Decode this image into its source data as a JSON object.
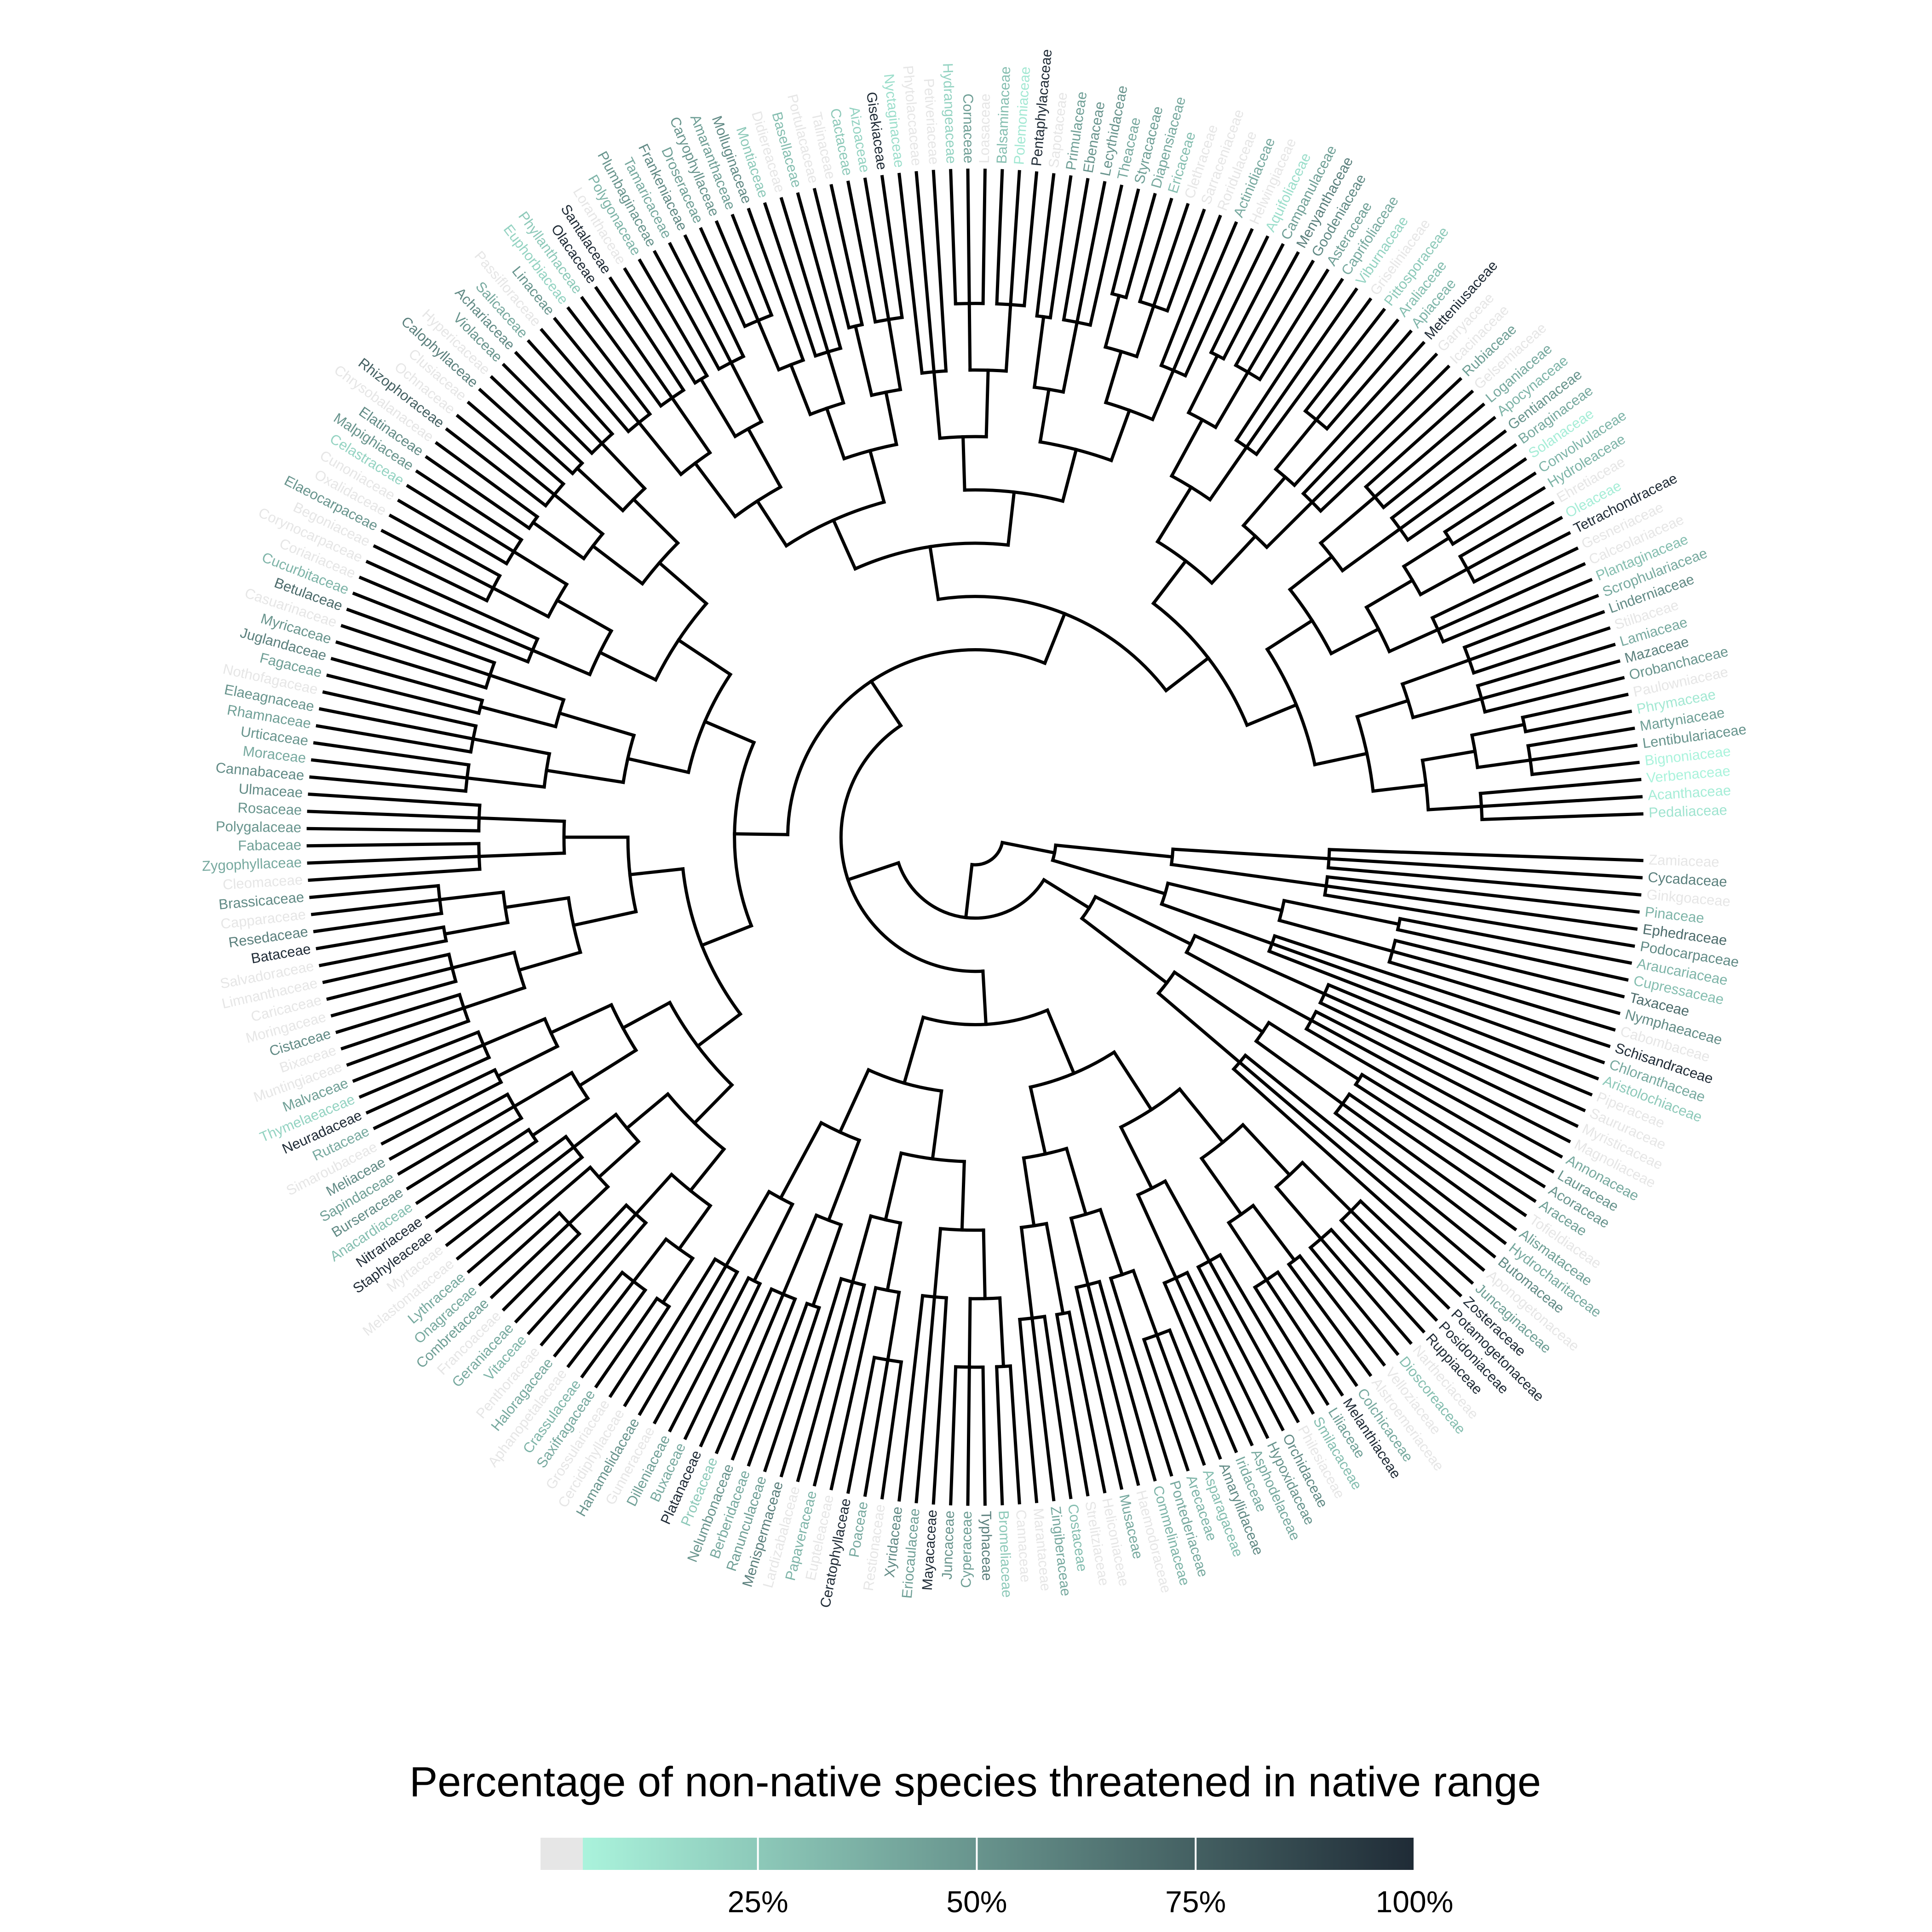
{
  "colors": {
    "na": "#e6e6e6",
    "low": "#aaf3dc",
    "high": "#1f2b36",
    "branch": "#000000"
  },
  "legend": {
    "title": "Percentage of non-native species threatened in native range",
    "ticks": [
      {
        "value": 25,
        "label": "25%"
      },
      {
        "value": 50,
        "label": "50%"
      },
      {
        "value": 75,
        "label": "75%"
      },
      {
        "value": 100,
        "label": "100%"
      }
    ]
  },
  "tips": [
    {
      "name": "Pedaliaceae",
      "p": 12
    },
    {
      "name": "Acanthaceae",
      "p": 8
    },
    {
      "name": "Verbenaceae",
      "p": 5
    },
    {
      "name": "Bignoniaceae",
      "p": 5
    },
    {
      "name": "Lentibulariaceae",
      "p": 50
    },
    {
      "name": "Martyniaceae",
      "p": 45
    },
    {
      "name": "Phrymaceae",
      "p": 10
    },
    {
      "name": "Paulowniaceae",
      "p": null
    },
    {
      "name": "Orobanchaceae",
      "p": 50
    },
    {
      "name": "Mazaceae",
      "p": 60
    },
    {
      "name": "Lamiaceae",
      "p": 40
    },
    {
      "name": "Stilbaceae",
      "p": null
    },
    {
      "name": "Linderniaceae",
      "p": 55
    },
    {
      "name": "Scrophulariaceae",
      "p": 40
    },
    {
      "name": "Plantaginaceae",
      "p": 30
    },
    {
      "name": "Calceolariaceae",
      "p": null
    },
    {
      "name": "Gesneriaceae",
      "p": null
    },
    {
      "name": "Tetrachondraceae",
      "p": 100
    },
    {
      "name": "Oleaceae",
      "p": 8
    },
    {
      "name": "Ehretiaceae",
      "p": null
    },
    {
      "name": "Hydroleaceae",
      "p": 35
    },
    {
      "name": "Convolvulaceae",
      "p": 35
    },
    {
      "name": "Solanaceae",
      "p": 8
    },
    {
      "name": "Boraginaceae",
      "p": 40
    },
    {
      "name": "Gentianaceae",
      "p": 50
    },
    {
      "name": "Apocynaceae",
      "p": 35
    },
    {
      "name": "Loganiaceae",
      "p": 40
    },
    {
      "name": "Gelsemiaceae",
      "p": null
    },
    {
      "name": "Rubiaceae",
      "p": 45
    },
    {
      "name": "Icacinaceae",
      "p": null
    },
    {
      "name": "Garryaceae",
      "p": null
    },
    {
      "name": "Metteniusaceae",
      "p": 100
    },
    {
      "name": "Apiaceae",
      "p": 35
    },
    {
      "name": "Araliaceae",
      "p": 30
    },
    {
      "name": "Pittosporaceae",
      "p": 25
    },
    {
      "name": "Griseliniaceae",
      "p": null
    },
    {
      "name": "Viburnaceae",
      "p": 20
    },
    {
      "name": "Caprifoliaceae",
      "p": 40
    },
    {
      "name": "Asteraceae",
      "p": 45
    },
    {
      "name": "Goodeniaceae",
      "p": 55
    },
    {
      "name": "Menyanthaceae",
      "p": 60
    },
    {
      "name": "Campanulaceae",
      "p": 45
    },
    {
      "name": "Aquifoliaceae",
      "p": 15
    },
    {
      "name": "Helwingiaceae",
      "p": null
    },
    {
      "name": "Actinidiaceae",
      "p": 40
    },
    {
      "name": "Roridulaceae",
      "p": null
    },
    {
      "name": "Sarraceniaceae",
      "p": null
    },
    {
      "name": "Clethraceae",
      "p": null
    },
    {
      "name": "Ericaceae",
      "p": 30
    },
    {
      "name": "Diapensiaceae",
      "p": 40
    },
    {
      "name": "Styracaceae",
      "p": 45
    },
    {
      "name": "Theaceae",
      "p": 40
    },
    {
      "name": "Lecythidaceae",
      "p": 50
    },
    {
      "name": "Ebenaceae",
      "p": 50
    },
    {
      "name": "Primulaceae",
      "p": 45
    },
    {
      "name": "Sapotaceae",
      "p": null
    },
    {
      "name": "Pentaphylacaceae",
      "p": 100
    },
    {
      "name": "Polemoniaceae",
      "p": 10
    },
    {
      "name": "Balsaminaceae",
      "p": 30
    },
    {
      "name": "Loasaceae",
      "p": null
    },
    {
      "name": "Cornaceae",
      "p": 45
    },
    {
      "name": "Hydrangeaceae",
      "p": 20
    },
    {
      "name": "Petiveriaceae",
      "p": null
    },
    {
      "name": "Phytolaccaceae",
      "p": null
    },
    {
      "name": "Nyctaginaceae",
      "p": 15
    },
    {
      "name": "Gisekiaceae",
      "p": 100
    },
    {
      "name": "Aizoaceae",
      "p": 20
    },
    {
      "name": "Cactaceae",
      "p": 25
    },
    {
      "name": "Talinaceae",
      "p": null
    },
    {
      "name": "Portulacaceae",
      "p": null
    },
    {
      "name": "Basellaceae",
      "p": 30
    },
    {
      "name": "Didiereaceae",
      "p": null
    },
    {
      "name": "Montiaceae",
      "p": 25
    },
    {
      "name": "Molluginaceae",
      "p": 55
    },
    {
      "name": "Amaranthaceae",
      "p": 45
    },
    {
      "name": "Caryophyllaceae",
      "p": 50
    },
    {
      "name": "Droseraceae",
      "p": 45
    },
    {
      "name": "Frankeniaceae",
      "p": 55
    },
    {
      "name": "Tamaricaceae",
      "p": 40
    },
    {
      "name": "Plumbaginaceae",
      "p": 50
    },
    {
      "name": "Polygonaceae",
      "p": 35
    },
    {
      "name": "Loranthaceae",
      "p": null
    },
    {
      "name": "Santalaceae",
      "p": 100
    },
    {
      "name": "Olacaceae",
      "p": 100
    },
    {
      "name": "Phyllanthaceae",
      "p": 25
    },
    {
      "name": "Euphorbiaceae",
      "p": 20
    },
    {
      "name": "Linaceae",
      "p": 50
    },
    {
      "name": "Passifloraceae",
      "p": null
    },
    {
      "name": "Salicaceae",
      "p": 40
    },
    {
      "name": "Achariaceae",
      "p": 55
    },
    {
      "name": "Violaceae",
      "p": 50
    },
    {
      "name": "Hypericaceae",
      "p": null
    },
    {
      "name": "Calophyllaceae",
      "p": 60
    },
    {
      "name": "Clusiaceae",
      "p": null
    },
    {
      "name": "Ochnaceae",
      "p": null
    },
    {
      "name": "Rhizophoraceae",
      "p": 75
    },
    {
      "name": "Chrysobalanaceae",
      "p": null
    },
    {
      "name": "Elatinaceae",
      "p": 55
    },
    {
      "name": "Malpighiaceae",
      "p": 50
    },
    {
      "name": "Celastraceae",
      "p": 20
    },
    {
      "name": "Cunoniaceae",
      "p": null
    },
    {
      "name": "Oxalidaceae",
      "p": null
    },
    {
      "name": "Elaeocarpaceae",
      "p": 50
    },
    {
      "name": "Begoniaceae",
      "p": null
    },
    {
      "name": "Corynocarpaceae",
      "p": null
    },
    {
      "name": "Coriariaceae",
      "p": null
    },
    {
      "name": "Cucurbitaceae",
      "p": 35
    },
    {
      "name": "Betulaceae",
      "p": 70
    },
    {
      "name": "Casuarinaceae",
      "p": null
    },
    {
      "name": "Myricaceae",
      "p": 50
    },
    {
      "name": "Juglandaceae",
      "p": 60
    },
    {
      "name": "Fagaceae",
      "p": 45
    },
    {
      "name": "Nothofagaceae",
      "p": null
    },
    {
      "name": "Elaeagnaceae",
      "p": 50
    },
    {
      "name": "Rhamnaceae",
      "p": 45
    },
    {
      "name": "Urticaceae",
      "p": 50
    },
    {
      "name": "Moraceae",
      "p": 40
    },
    {
      "name": "Cannabaceae",
      "p": 55
    },
    {
      "name": "Ulmaceae",
      "p": 55
    },
    {
      "name": "Rosaceae",
      "p": 50
    },
    {
      "name": "Polygalaceae",
      "p": 50
    },
    {
      "name": "Fabaceae",
      "p": 45
    },
    {
      "name": "Zygophyllaceae",
      "p": 40
    },
    {
      "name": "Cleomaceae",
      "p": null
    },
    {
      "name": "Brassicaceae",
      "p": 55
    },
    {
      "name": "Capparaceae",
      "p": null
    },
    {
      "name": "Resedaceae",
      "p": 60
    },
    {
      "name": "Bataceae",
      "p": 100
    },
    {
      "name": "Salvadoraceae",
      "p": null
    },
    {
      "name": "Limnanthaceae",
      "p": null
    },
    {
      "name": "Caricaceae",
      "p": null
    },
    {
      "name": "Moringaceae",
      "p": null
    },
    {
      "name": "Cistaceae",
      "p": 55
    },
    {
      "name": "Bixaceae",
      "p": null
    },
    {
      "name": "Muntingiaceae",
      "p": null
    },
    {
      "name": "Malvaceae",
      "p": 45
    },
    {
      "name": "Thymelaeaceae",
      "p": 20
    },
    {
      "name": "Neuradaceae",
      "p": 100
    },
    {
      "name": "Rutaceae",
      "p": 40
    },
    {
      "name": "Simaroubaceae",
      "p": null
    },
    {
      "name": "Meliaceae",
      "p": 55
    },
    {
      "name": "Sapindaceae",
      "p": 45
    },
    {
      "name": "Burseraceae",
      "p": 55
    },
    {
      "name": "Anacardiaceae",
      "p": 30
    },
    {
      "name": "Nitrariaceae",
      "p": 100
    },
    {
      "name": "Staphyleaceae",
      "p": 100
    },
    {
      "name": "Myrtaceae",
      "p": null
    },
    {
      "name": "Melastomataceae",
      "p": null
    },
    {
      "name": "Lythraceae",
      "p": 40
    },
    {
      "name": "Onagraceae",
      "p": 40
    },
    {
      "name": "Combretaceae",
      "p": 45
    },
    {
      "name": "Francoaceae",
      "p": null
    },
    {
      "name": "Geraniaceae",
      "p": 40
    },
    {
      "name": "Vitaceae",
      "p": 35
    },
    {
      "name": "Penthoraceae",
      "p": null
    },
    {
      "name": "Haloragaceae",
      "p": 40
    },
    {
      "name": "Aphanopetalaceae",
      "p": null
    },
    {
      "name": "Crassulaceae",
      "p": 35
    },
    {
      "name": "Saxifragaceae",
      "p": 40
    },
    {
      "name": "Grossulariaceae",
      "p": null
    },
    {
      "name": "Cercidiphyllaceae",
      "p": null
    },
    {
      "name": "Hamamelidaceae",
      "p": 50
    },
    {
      "name": "Gunneraceae",
      "p": null
    },
    {
      "name": "Dilleniaceae",
      "p": 45
    },
    {
      "name": "Buxaceae",
      "p": 40
    },
    {
      "name": "Platanaceae",
      "p": 100
    },
    {
      "name": "Proteaceae",
      "p": 25
    },
    {
      "name": "Nelumbonaceae",
      "p": 50
    },
    {
      "name": "Berberidaceae",
      "p": 40
    },
    {
      "name": "Ranunculaceae",
      "p": 45
    },
    {
      "name": "Menispermaceae",
      "p": 60
    },
    {
      "name": "Lardizabalaceae",
      "p": null
    },
    {
      "name": "Papaveraceae",
      "p": 35
    },
    {
      "name": "Eupteleaceae",
      "p": null
    },
    {
      "name": "Ceratophyllaceae",
      "p": 100
    },
    {
      "name": "Poaceae",
      "p": 40
    },
    {
      "name": "Restionaceae",
      "p": null
    },
    {
      "name": "Xyridaceae",
      "p": 55
    },
    {
      "name": "Eriocaulaceae",
      "p": 45
    },
    {
      "name": "Mayacaceae",
      "p": 100
    },
    {
      "name": "Juncaceae",
      "p": 50
    },
    {
      "name": "Cyperaceae",
      "p": 45
    },
    {
      "name": "Typhaceae",
      "p": 60
    },
    {
      "name": "Bromeliaceae",
      "p": 25
    },
    {
      "name": "Cannaceae",
      "p": null
    },
    {
      "name": "Marantaceae",
      "p": null
    },
    {
      "name": "Zingiberaceae",
      "p": 40
    },
    {
      "name": "Costaceae",
      "p": 30
    },
    {
      "name": "Strelitziaceae",
      "p": null
    },
    {
      "name": "Heliconiaceae",
      "p": null
    },
    {
      "name": "Musaceae",
      "p": 40
    },
    {
      "name": "Haemodoraceae",
      "p": null
    },
    {
      "name": "Commelinaceae",
      "p": 35
    },
    {
      "name": "Pontederiaceae",
      "p": 40
    },
    {
      "name": "Arecaceae",
      "p": 35
    },
    {
      "name": "Asparagaceae",
      "p": 30
    },
    {
      "name": "Amaryllidaceae",
      "p": 55
    },
    {
      "name": "Iridaceae",
      "p": 40
    },
    {
      "name": "Asphodelaceae",
      "p": 40
    },
    {
      "name": "Hypoxidaceae",
      "p": 50
    },
    {
      "name": "Orchidaceae",
      "p": 55
    },
    {
      "name": "Philesiaceae",
      "p": null
    },
    {
      "name": "Smilacaceae",
      "p": 30
    },
    {
      "name": "Liliaceae",
      "p": 45
    },
    {
      "name": "Melanthiaceae",
      "p": 100
    },
    {
      "name": "Colchicaceae",
      "p": 40
    },
    {
      "name": "Alstroemeriaceae",
      "p": null
    },
    {
      "name": "Velloziaceae",
      "p": null
    },
    {
      "name": "Dioscoreaceae",
      "p": 30
    },
    {
      "name": "Nartheciaceae",
      "p": null
    },
    {
      "name": "Ruppiaceae",
      "p": 100
    },
    {
      "name": "Posidoniaceae",
      "p": 100
    },
    {
      "name": "Potamogetonaceae",
      "p": 100
    },
    {
      "name": "Zosteraceae",
      "p": 100
    },
    {
      "name": "Juncaginaceae",
      "p": 45
    },
    {
      "name": "Aponogetonaceae",
      "p": null
    },
    {
      "name": "Butomaceae",
      "p": 55
    },
    {
      "name": "Hydrocharitaceae",
      "p": 40
    },
    {
      "name": "Alismataceae",
      "p": 45
    },
    {
      "name": "Tofieldiaceae",
      "p": null
    },
    {
      "name": "Araceae",
      "p": 45
    },
    {
      "name": "Acoraceae",
      "p": 50
    },
    {
      "name": "Lauraceae",
      "p": 50
    },
    {
      "name": "Annonaceae",
      "p": 40
    },
    {
      "name": "Magnoliaceae",
      "p": null
    },
    {
      "name": "Myristicaceae",
      "p": null
    },
    {
      "name": "Saururaceae",
      "p": null
    },
    {
      "name": "Piperaceae",
      "p": null
    },
    {
      "name": "Aristolochiaceae",
      "p": 25
    },
    {
      "name": "Chloranthaceae",
      "p": 40
    },
    {
      "name": "Schisandraceae",
      "p": 100
    },
    {
      "name": "Cabombaceae",
      "p": null
    },
    {
      "name": "Nymphaeaceae",
      "p": 55
    },
    {
      "name": "Taxaceae",
      "p": 70
    },
    {
      "name": "Cupressaceae",
      "p": 30
    },
    {
      "name": "Araucariaceae",
      "p": 35
    },
    {
      "name": "Podocarpaceae",
      "p": 55
    },
    {
      "name": "Ephedraceae",
      "p": 70
    },
    {
      "name": "Pinaceae",
      "p": 35
    },
    {
      "name": "Ginkgoaceae",
      "p": null
    },
    {
      "name": "Cycadaceae",
      "p": 60
    },
    {
      "name": "Zamiaceae",
      "p": null
    }
  ]
}
